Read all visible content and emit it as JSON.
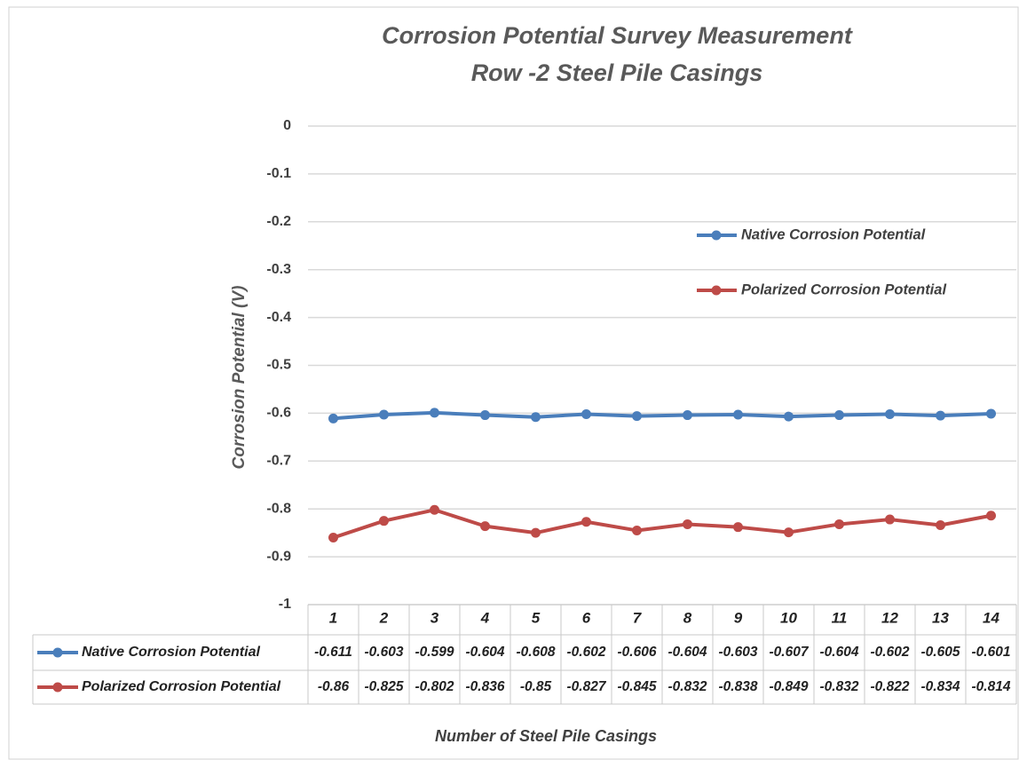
{
  "chart_data": {
    "type": "line",
    "title": "Corrosion Potential Survey Measurement",
    "subtitle": "Row -2 Steel Pile Casings",
    "y_axis_label": "Corrosion Potential (V)",
    "x_axis_label": "Number of Steel Pile Casings",
    "categories": [
      "1",
      "2",
      "3",
      "4",
      "5",
      "6",
      "7",
      "8",
      "9",
      "10",
      "11",
      "12",
      "13",
      "14"
    ],
    "series": [
      {
        "name": "Native Corrosion Potential",
        "color": "#4a7ebb",
        "values": [
          -0.611,
          -0.603,
          -0.599,
          -0.604,
          -0.608,
          -0.602,
          -0.606,
          -0.604,
          -0.603,
          -0.607,
          -0.604,
          -0.602,
          -0.605,
          -0.601
        ]
      },
      {
        "name": "Polarized Corrosion Potential",
        "color": "#be4b48",
        "values": [
          -0.86,
          -0.825,
          -0.802,
          -0.836,
          -0.85,
          -0.827,
          -0.845,
          -0.832,
          -0.838,
          -0.849,
          -0.832,
          -0.822,
          -0.834,
          -0.814
        ]
      }
    ],
    "ylim": [
      -1,
      0
    ],
    "yticks": [
      0,
      -0.1,
      -0.2,
      -0.3,
      -0.4,
      -0.5,
      -0.6,
      -0.7,
      -0.8,
      -0.9,
      -1
    ],
    "grid": true
  }
}
